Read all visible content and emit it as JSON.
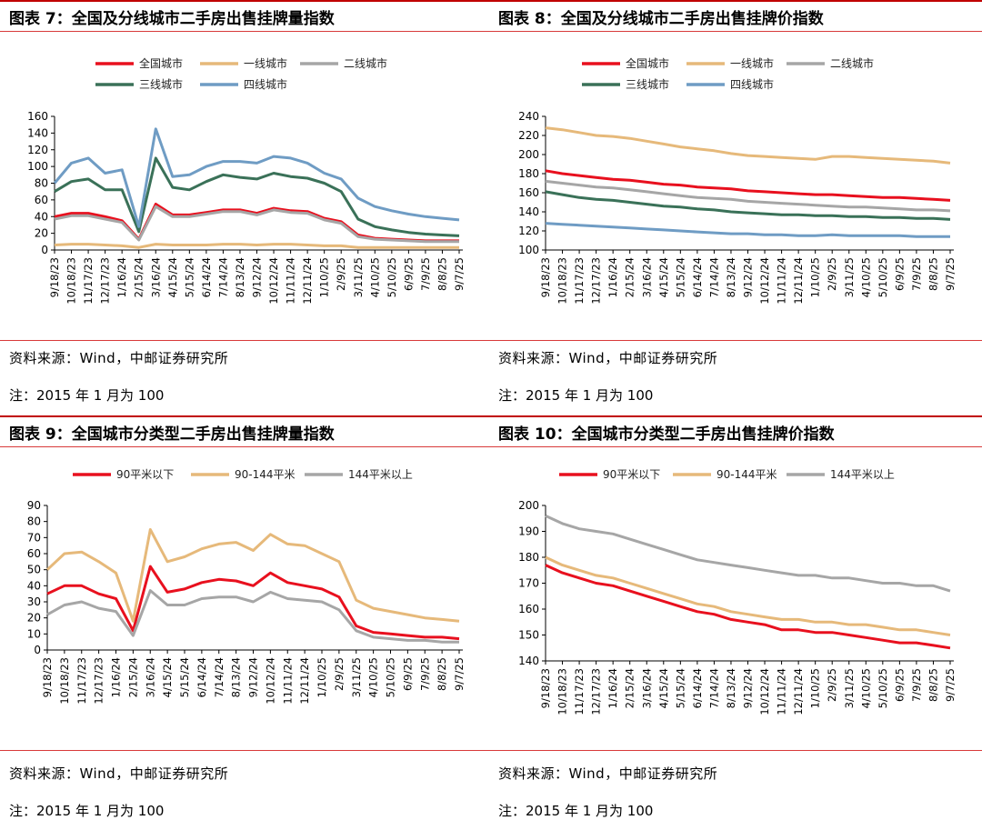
{
  "charts": [
    {
      "title": "图表 7：全国及分线城市二手房出售挂牌量指数",
      "source": "资料来源：Wind，中邮证券研究所",
      "note": "注：2015 年 1 月为 100"
    },
    {
      "title": "图表 8：全国及分线城市二手房出售挂牌价指数",
      "source": "资料来源：Wind，中邮证券研究所",
      "note": "注：2015 年 1 月为 100"
    },
    {
      "title": "图表 9：全国城市分类型二手房出售挂牌量指数",
      "source": "资料来源：Wind，中邮证券研究所",
      "note": "注：2015 年 1 月为 100"
    },
    {
      "title": "图表 10：全国城市分类型二手房出售挂牌价指数",
      "source": "资料来源：Wind，中邮证券研究所",
      "note": "注：2015 年 1 月为 100"
    }
  ],
  "chart_data": [
    {
      "type": "line",
      "title": "全国及分线城市二手房出售挂牌量指数",
      "x": [
        "9/18/23",
        "10/18/23",
        "11/17/23",
        "12/17/23",
        "1/16/24",
        "2/15/24",
        "3/16/24",
        "4/15/24",
        "5/15/24",
        "6/14/24",
        "7/14/24",
        "8/13/24",
        "9/12/24",
        "10/12/24",
        "11/11/24",
        "12/11/24",
        "1/10/25",
        "2/9/25",
        "3/11/25",
        "4/10/25",
        "5/10/25",
        "6/9/25",
        "7/9/25",
        "8/8/25",
        "9/7/25"
      ],
      "ylim": [
        0,
        160
      ],
      "yticks": [
        0,
        20,
        40,
        60,
        80,
        100,
        120,
        140,
        160
      ],
      "series": [
        {
          "name": "全国城市",
          "color": "#e8101e",
          "values": [
            40,
            44,
            44,
            40,
            35,
            13,
            55,
            42,
            42,
            45,
            48,
            48,
            44,
            50,
            47,
            46,
            38,
            34,
            18,
            14,
            13,
            12,
            11,
            11,
            11
          ]
        },
        {
          "name": "一线城市",
          "color": "#e6b97a",
          "values": [
            6,
            7,
            7,
            6,
            5,
            3,
            7,
            6,
            6,
            6,
            7,
            7,
            6,
            7,
            7,
            6,
            5,
            5,
            3,
            3,
            3,
            3,
            3,
            3,
            3
          ]
        },
        {
          "name": "二线城市",
          "color": "#a6a6a6",
          "values": [
            37,
            41,
            41,
            37,
            33,
            12,
            52,
            40,
            40,
            43,
            46,
            46,
            42,
            48,
            45,
            44,
            36,
            32,
            16,
            13,
            12,
            11,
            10,
            10,
            10
          ]
        },
        {
          "name": "三线城市",
          "color": "#3a7158",
          "values": [
            70,
            82,
            85,
            72,
            72,
            22,
            110,
            75,
            72,
            82,
            90,
            87,
            85,
            92,
            88,
            86,
            80,
            70,
            37,
            28,
            24,
            21,
            19,
            18,
            17
          ]
        },
        {
          "name": "四线城市",
          "color": "#6f9cc4",
          "values": [
            80,
            104,
            110,
            92,
            96,
            28,
            145,
            88,
            90,
            100,
            106,
            106,
            104,
            112,
            110,
            104,
            92,
            85,
            62,
            52,
            47,
            43,
            40,
            38,
            36
          ]
        }
      ]
    },
    {
      "type": "line",
      "title": "全国及分线城市二手房出售挂牌价指数",
      "x": [
        "9/18/23",
        "10/18/23",
        "11/17/23",
        "12/17/23",
        "1/16/24",
        "2/15/24",
        "3/16/24",
        "4/15/24",
        "5/15/24",
        "6/14/24",
        "7/14/24",
        "8/13/24",
        "9/12/24",
        "10/12/24",
        "11/11/24",
        "12/11/24",
        "1/10/25",
        "2/9/25",
        "3/11/25",
        "4/10/25",
        "5/10/25",
        "6/9/25",
        "7/9/25",
        "8/8/25",
        "9/7/25"
      ],
      "ylim": [
        100,
        240
      ],
      "yticks": [
        100,
        120,
        140,
        160,
        180,
        200,
        220,
        240
      ],
      "series": [
        {
          "name": "全国城市",
          "color": "#e8101e",
          "values": [
            183,
            180,
            178,
            176,
            174,
            173,
            171,
            169,
            168,
            166,
            165,
            164,
            162,
            161,
            160,
            159,
            158,
            158,
            157,
            156,
            155,
            155,
            154,
            153,
            152
          ]
        },
        {
          "name": "一线城市",
          "color": "#e6b97a",
          "values": [
            228,
            226,
            223,
            220,
            219,
            217,
            214,
            211,
            208,
            206,
            204,
            201,
            199,
            198,
            197,
            196,
            195,
            198,
            198,
            197,
            196,
            195,
            194,
            193,
            191
          ]
        },
        {
          "name": "二线城市",
          "color": "#a6a6a6",
          "values": [
            172,
            170,
            168,
            166,
            165,
            163,
            161,
            159,
            157,
            155,
            154,
            153,
            151,
            150,
            149,
            148,
            147,
            146,
            145,
            145,
            144,
            143,
            142,
            142,
            141
          ]
        },
        {
          "name": "三线城市",
          "color": "#3a7158",
          "values": [
            161,
            158,
            155,
            153,
            152,
            150,
            148,
            146,
            145,
            143,
            142,
            140,
            139,
            138,
            137,
            137,
            136,
            136,
            135,
            135,
            134,
            134,
            133,
            133,
            132
          ]
        },
        {
          "name": "四线城市",
          "color": "#6f9cc4",
          "values": [
            128,
            127,
            126,
            125,
            124,
            123,
            122,
            121,
            120,
            119,
            118,
            117,
            117,
            116,
            116,
            115,
            115,
            116,
            115,
            115,
            115,
            115,
            114,
            114,
            114
          ]
        }
      ]
    },
    {
      "type": "line",
      "title": "全国城市分类型二手房出售挂牌量指数",
      "x": [
        "9/18/23",
        "10/18/23",
        "11/17/23",
        "12/17/23",
        "1/16/24",
        "2/15/24",
        "3/16/24",
        "4/15/24",
        "5/15/24",
        "6/14/24",
        "7/14/24",
        "8/13/24",
        "9/12/24",
        "10/12/24",
        "11/11/24",
        "12/11/24",
        "1/10/25",
        "2/9/25",
        "3/11/25",
        "4/10/25",
        "5/10/25",
        "6/9/25",
        "7/9/25",
        "8/8/25",
        "9/7/25"
      ],
      "ylim": [
        0,
        90
      ],
      "yticks": [
        0,
        10,
        20,
        30,
        40,
        50,
        60,
        70,
        80,
        90
      ],
      "series": [
        {
          "name": "90平米以下",
          "color": "#e8101e",
          "values": [
            35,
            40,
            40,
            35,
            32,
            12,
            52,
            36,
            38,
            42,
            44,
            43,
            40,
            48,
            42,
            40,
            38,
            33,
            15,
            11,
            10,
            9,
            8,
            8,
            7
          ]
        },
        {
          "name": "90-144平米",
          "color": "#e6b97a",
          "values": [
            50,
            60,
            61,
            55,
            48,
            18,
            75,
            55,
            58,
            63,
            66,
            67,
            62,
            72,
            66,
            65,
            60,
            55,
            31,
            26,
            24,
            22,
            20,
            19,
            18
          ]
        },
        {
          "name": "144平米以上",
          "color": "#a6a6a6",
          "values": [
            22,
            28,
            30,
            26,
            24,
            9,
            37,
            28,
            28,
            32,
            33,
            33,
            30,
            36,
            32,
            31,
            30,
            25,
            12,
            8,
            7,
            6,
            6,
            5,
            5
          ]
        }
      ]
    },
    {
      "type": "line",
      "title": "全国城市分类型二手房出售挂牌价指数",
      "x": [
        "9/18/23",
        "10/18/23",
        "11/17/23",
        "12/17/23",
        "1/16/24",
        "2/15/24",
        "3/16/24",
        "4/15/24",
        "5/15/24",
        "6/14/24",
        "7/14/24",
        "8/13/24",
        "9/12/24",
        "10/12/24",
        "11/11/24",
        "12/11/24",
        "1/10/25",
        "2/9/25",
        "3/11/25",
        "4/10/25",
        "5/10/25",
        "6/9/25",
        "7/9/25",
        "8/8/25",
        "9/7/25"
      ],
      "ylim": [
        140,
        200
      ],
      "yticks": [
        140,
        150,
        160,
        170,
        180,
        190,
        200
      ],
      "series": [
        {
          "name": "90平米以下",
          "color": "#e8101e",
          "values": [
            177,
            174,
            172,
            170,
            169,
            167,
            165,
            163,
            161,
            159,
            158,
            156,
            155,
            154,
            152,
            152,
            151,
            151,
            150,
            149,
            148,
            147,
            147,
            146,
            145
          ]
        },
        {
          "name": "90-144平米",
          "color": "#e6b97a",
          "values": [
            180,
            177,
            175,
            173,
            172,
            170,
            168,
            166,
            164,
            162,
            161,
            159,
            158,
            157,
            156,
            156,
            155,
            155,
            154,
            154,
            153,
            152,
            152,
            151,
            150
          ]
        },
        {
          "name": "144平米以上",
          "color": "#a6a6a6",
          "values": [
            196,
            193,
            191,
            190,
            189,
            187,
            185,
            183,
            181,
            179,
            178,
            177,
            176,
            175,
            174,
            173,
            173,
            172,
            172,
            171,
            170,
            170,
            169,
            169,
            167
          ]
        }
      ]
    }
  ]
}
